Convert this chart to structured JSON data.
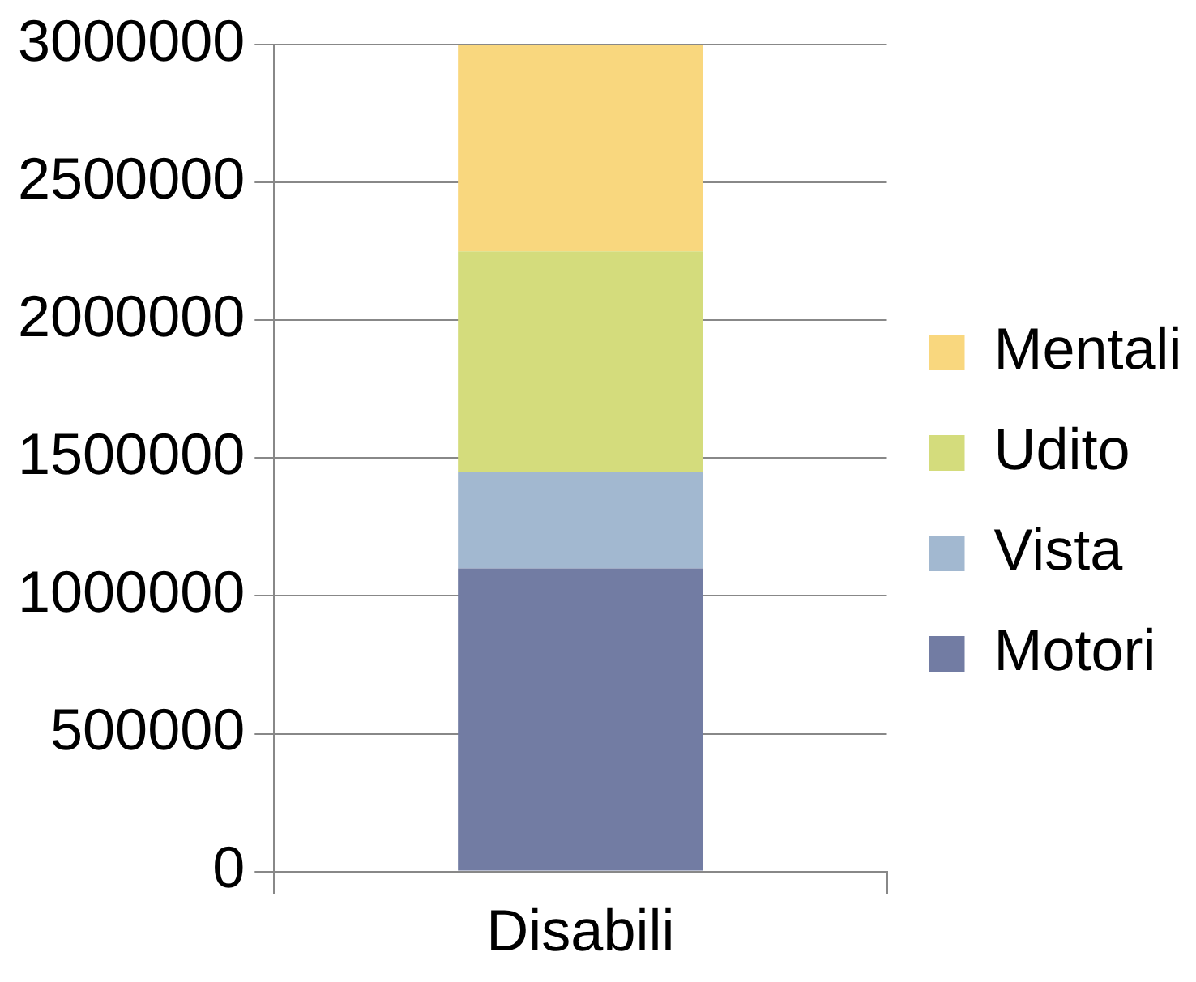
{
  "chart_data": {
    "type": "bar",
    "stacked": true,
    "categories": [
      "Disabili"
    ],
    "series": [
      {
        "name": "Motori",
        "color": "#727ca3",
        "values": [
          1100000
        ]
      },
      {
        "name": "Vista",
        "color": "#a2b8d0",
        "values": [
          350000
        ]
      },
      {
        "name": "Udito",
        "color": "#d4dc7c",
        "values": [
          800000
        ]
      },
      {
        "name": "Mentali",
        "color": "#f9d77e",
        "values": [
          750000
        ]
      }
    ],
    "ylim": [
      0,
      3000000
    ],
    "yticks": [
      0,
      500000,
      1000000,
      1500000,
      2000000,
      2500000,
      3000000
    ],
    "grid": "y",
    "legend": "right"
  }
}
